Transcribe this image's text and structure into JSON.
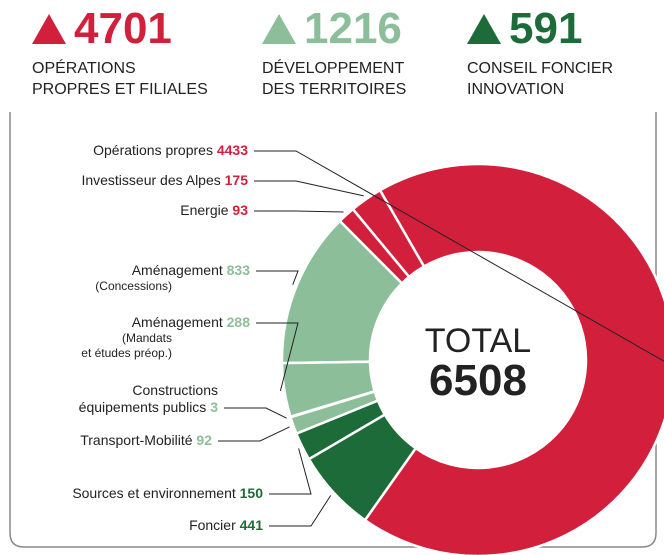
{
  "chart_data": {
    "type": "donut",
    "groups": [
      {
        "value": 4701,
        "label": "OPÉRATIONS\nPROPRES ET FILIALES",
        "color": "#d21f3c"
      },
      {
        "value": 1216,
        "label": "DÉVELOPPEMENT\nDES TERRITOIRES",
        "color": "#8cbf99"
      },
      {
        "value": 591,
        "label": "CONSEIL FONCIER\nINNOVATION",
        "color": "#1e6b3a"
      }
    ],
    "categories": [
      "Opérations propres",
      "Investisseur des Alpes",
      "Energie",
      "Aménagement",
      "Aménagement",
      "Constructions\néquipements publics",
      "Transport-Mobilité",
      "Sources et environnement",
      "Foncier"
    ],
    "category_notes": [
      null,
      null,
      null,
      "(Concessions)",
      "(Mandats\net études préop.)",
      null,
      null,
      null,
      null
    ],
    "values": [
      4433,
      175,
      93,
      833,
      288,
      3,
      92,
      150,
      441
    ],
    "colors": [
      "#d21f3c",
      "#d21f3c",
      "#d21f3c",
      "#8cbf99",
      "#8cbf99",
      "#8cbf99",
      "#8cbf99",
      "#1e6b3a",
      "#1e6b3a"
    ],
    "center_label": "TOTAL",
    "center_value": 6508
  }
}
